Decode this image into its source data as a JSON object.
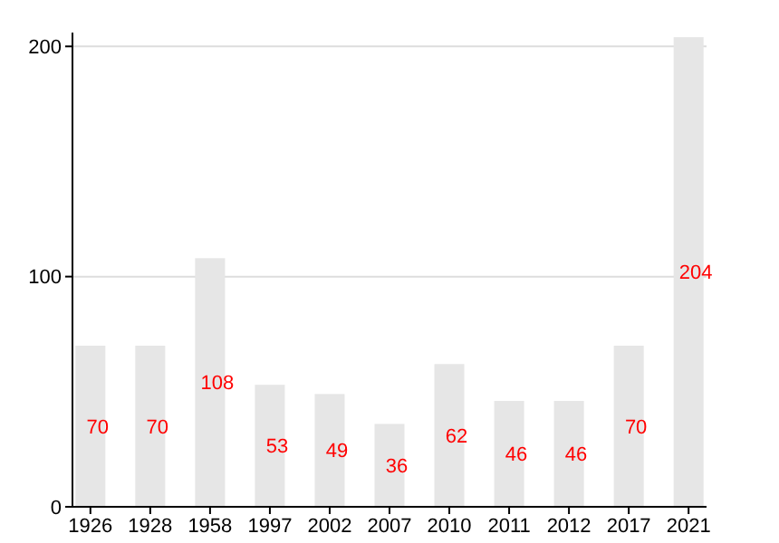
{
  "chart_data": {
    "type": "bar",
    "categories": [
      "1926",
      "1928",
      "1958",
      "1997",
      "2002",
      "2007",
      "2010",
      "2011",
      "2012",
      "2017",
      "2021"
    ],
    "values": [
      70,
      70,
      108,
      53,
      49,
      36,
      62,
      46,
      46,
      70,
      204
    ],
    "color": "#e6e6e6",
    "ylim": [
      0,
      206
    ],
    "yticks": [
      0,
      100,
      200
    ],
    "grid": "y",
    "data_labels": true
  }
}
